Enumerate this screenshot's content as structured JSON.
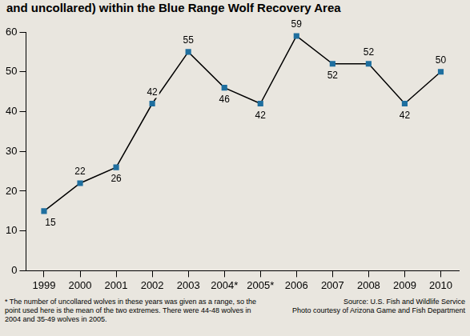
{
  "chart_data": {
    "type": "line",
    "title": "and uncollared) within the Blue Range Wolf Recovery Area",
    "categories": [
      "1999",
      "2000",
      "2001",
      "2002",
      "2003",
      "2004*",
      "2005*",
      "2006",
      "2007",
      "2008",
      "2009",
      "2010"
    ],
    "values": [
      15,
      22,
      26,
      42,
      55,
      46,
      42,
      59,
      52,
      52,
      42,
      50
    ],
    "color": "#1f6f9f",
    "marker": "square",
    "ylim": [
      0,
      60
    ],
    "yticks": [
      0,
      10,
      20,
      30,
      40,
      50,
      60
    ],
    "grid": false,
    "data_labels": true,
    "annotations": [
      "* The number of uncollared wolves in these years was given as a range, so the point used here is the mean of the two extremes. There were 44-48 wolves in 2004 and 35-49 wolves in 2005.",
      "Source: U.S. Fish and Wildlife Service",
      "Photo courtesy of Arizona Game and Fish Department"
    ]
  }
}
